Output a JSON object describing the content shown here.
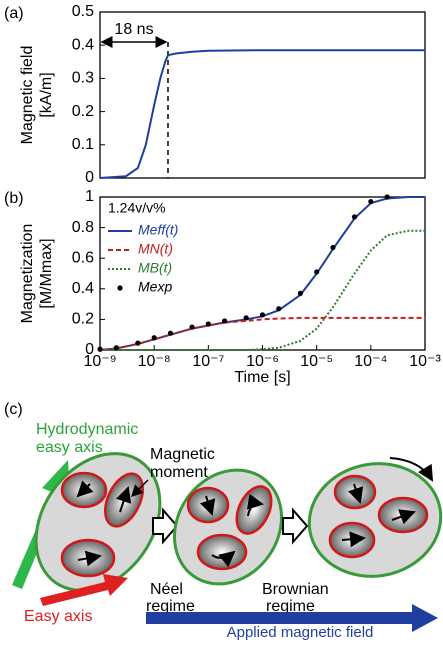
{
  "chart_data": [
    {
      "type": "line",
      "panel_label": "(a)",
      "ylabel": [
        "Magnetic field",
        "[kA/m]"
      ],
      "xlog": true,
      "xlim": [
        1e-09,
        0.001
      ],
      "ylim": [
        0,
        0.5
      ],
      "yticks": [
        0,
        0.1,
        0.2,
        0.3,
        0.4,
        0.5
      ],
      "vline": 1.8e-08,
      "annotation": "18 ns",
      "x": [
        1e-09,
        3e-09,
        5e-09,
        7e-09,
        1e-08,
        1.3e-08,
        1.6e-08,
        1.8e-08,
        2.5e-08,
        5e-08,
        1e-07,
        1e-06,
        1e-05,
        0.0001,
        0.001
      ],
      "series": [
        {
          "name": null,
          "color": "#1f3f9f",
          "dash": "solid",
          "values": [
            0,
            0.005,
            0.03,
            0.1,
            0.22,
            0.3,
            0.35,
            0.37,
            0.375,
            0.38,
            0.383,
            0.385,
            0.385,
            0.385,
            0.385
          ]
        }
      ]
    },
    {
      "type": "line",
      "panel_label": "(b)",
      "ylabel": [
        "Magnetization",
        "[M/Mmax]"
      ],
      "xlabel": "Time [s]",
      "annotation": "1.24v/v%",
      "legend": "upper left",
      "xlog": true,
      "xlim": [
        1e-09,
        0.001
      ],
      "ylim": [
        0,
        1
      ],
      "yticks": [
        0,
        0.2,
        0.4,
        0.6,
        0.8,
        1
      ],
      "xticks": [
        {
          "value": 1e-09,
          "label": "10⁻⁹"
        },
        {
          "value": 1e-08,
          "label": "10⁻⁸"
        },
        {
          "value": 1e-07,
          "label": "10⁻⁷"
        },
        {
          "value": 1e-06,
          "label": "10⁻⁶"
        },
        {
          "value": 1e-05,
          "label": "10⁻⁵"
        },
        {
          "value": 0.0001,
          "label": "10⁻⁴"
        },
        {
          "value": 0.001,
          "label": "10⁻³"
        }
      ],
      "x": [
        1e-09,
        2e-09,
        5e-09,
        1e-08,
        2e-08,
        5e-08,
        1e-07,
        2e-07,
        5e-07,
        1e-06,
        2e-06,
        5e-06,
        1e-05,
        2e-05,
        5e-05,
        0.0001,
        0.0002,
        0.0005,
        0.001
      ],
      "series": [
        {
          "name": "Meff(t)",
          "color": "#1f3f9f",
          "dash": "solid",
          "values": [
            0,
            0.01,
            0.04,
            0.07,
            0.1,
            0.14,
            0.16,
            0.18,
            0.2,
            0.22,
            0.26,
            0.36,
            0.5,
            0.66,
            0.86,
            0.96,
            0.99,
            1,
            1
          ]
        },
        {
          "name": "MN(t)",
          "color": "#c0201c",
          "dash": "dashed",
          "values": [
            0,
            0.01,
            0.04,
            0.07,
            0.1,
            0.14,
            0.16,
            0.18,
            0.19,
            0.2,
            0.205,
            0.21,
            0.21,
            0.21,
            0.21,
            0.21,
            0.21,
            0.21,
            0.21
          ]
        },
        {
          "name": "MB(t)",
          "color": "#2e7d32",
          "dash": "dotted",
          "values": [
            0,
            0,
            0,
            0,
            0,
            0,
            0,
            0,
            0,
            0.005,
            0.015,
            0.06,
            0.14,
            0.28,
            0.5,
            0.65,
            0.75,
            0.78,
            0.78
          ]
        },
        {
          "name": "Mexp",
          "color": "#000000",
          "dash": "dots",
          "values": [
            0.005,
            0.015,
            0.045,
            0.08,
            0.11,
            0.15,
            0.17,
            0.19,
            0.21,
            0.23,
            0.27,
            0.37,
            0.51,
            0.67,
            0.87,
            0.97,
            1,
            null,
            null
          ]
        }
      ]
    }
  ],
  "diagram": {
    "panel_label": "(c)",
    "hydrodynamic_axis": [
      "Hydrodynamic",
      "easy axis"
    ],
    "magnetic_moment": [
      "Magnetic",
      "moment"
    ],
    "easy_axis": "Easy axis",
    "neel": [
      "Néel",
      "regime"
    ],
    "brownian": [
      "Brownian",
      "regime"
    ],
    "field": "Applied magnetic field"
  }
}
